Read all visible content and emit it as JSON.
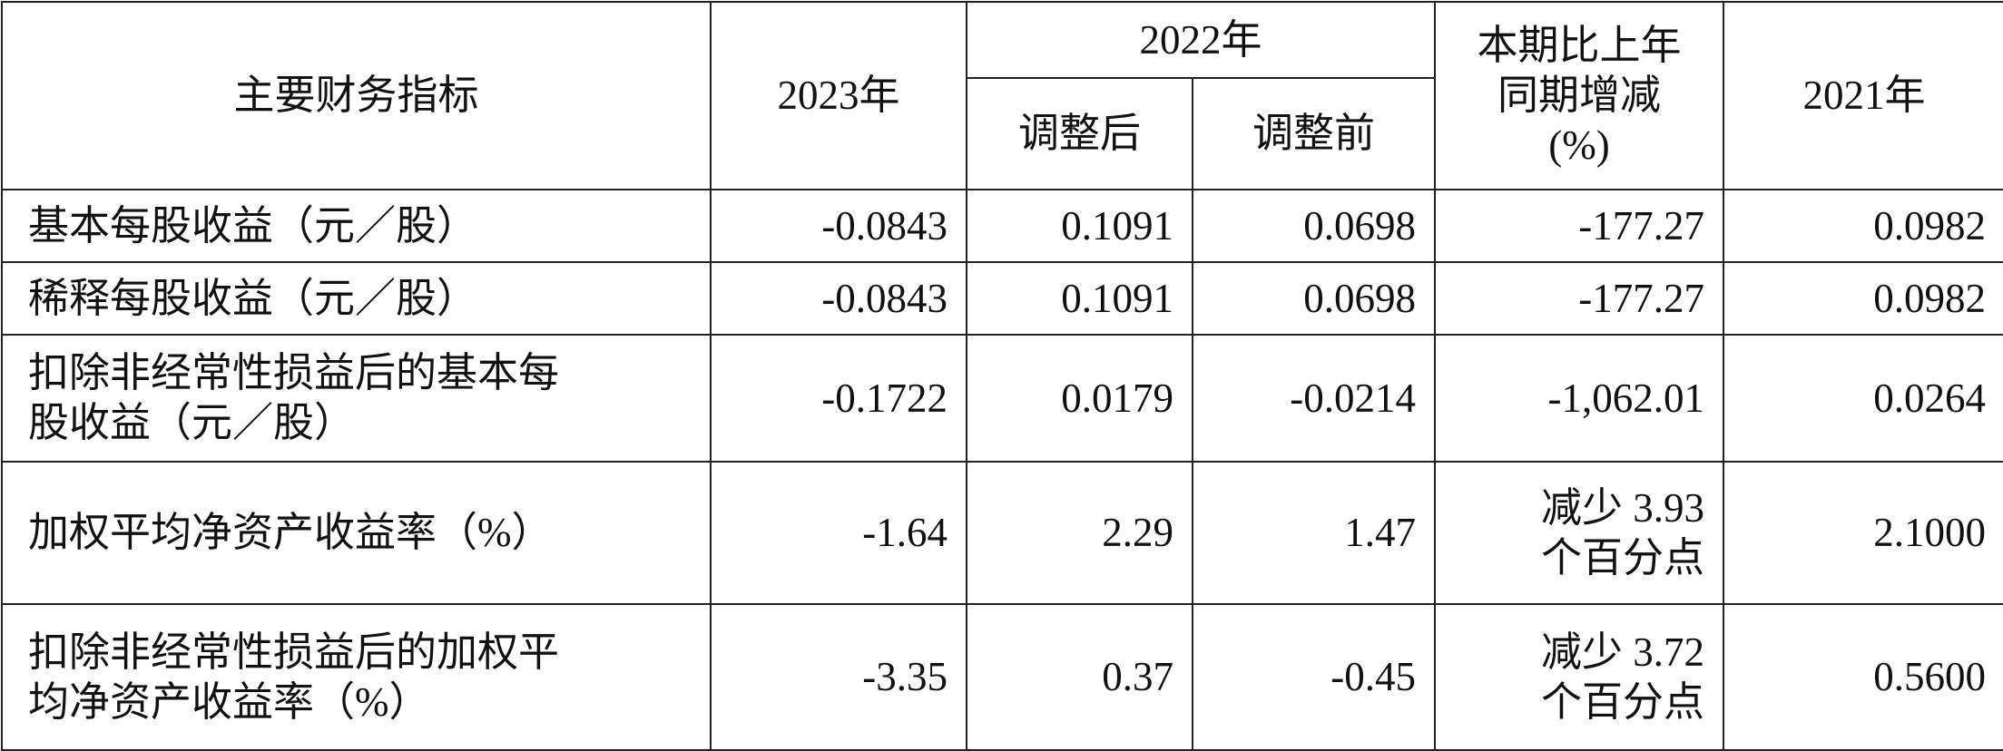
{
  "header": {
    "indicator": "主要财务指标",
    "y2023": "2023年",
    "y2022": "2022年",
    "adjusted_after": "调整后",
    "adjusted_before": "调整前",
    "change": "本期比上年\n同期增减\n(%)",
    "y2021": "2021年"
  },
  "table": {
    "rows": [
      [
        "基本每股收益（元／股）",
        "-0.0843",
        "0.1091",
        "0.0698",
        "-177.27",
        "0.0982"
      ],
      [
        "稀释每股收益（元／股）",
        "-0.0843",
        "0.1091",
        "0.0698",
        "-177.27",
        "0.0982"
      ],
      [
        "扣除非经常性损益后的基本每\n股收益（元／股）",
        "-0.1722",
        "0.0179",
        "-0.0214",
        "-1,062.01",
        "0.0264"
      ],
      [
        "加权平均净资产收益率（%）",
        "-1.64",
        "2.29",
        "1.47",
        "减少 3.93\n个百分点",
        "2.1000"
      ],
      [
        "扣除非经常性损益后的加权平\n均净资产收益率（%）",
        "-3.35",
        "0.37",
        "-0.45",
        "减少 3.72\n个百分点",
        "0.5600"
      ]
    ]
  }
}
